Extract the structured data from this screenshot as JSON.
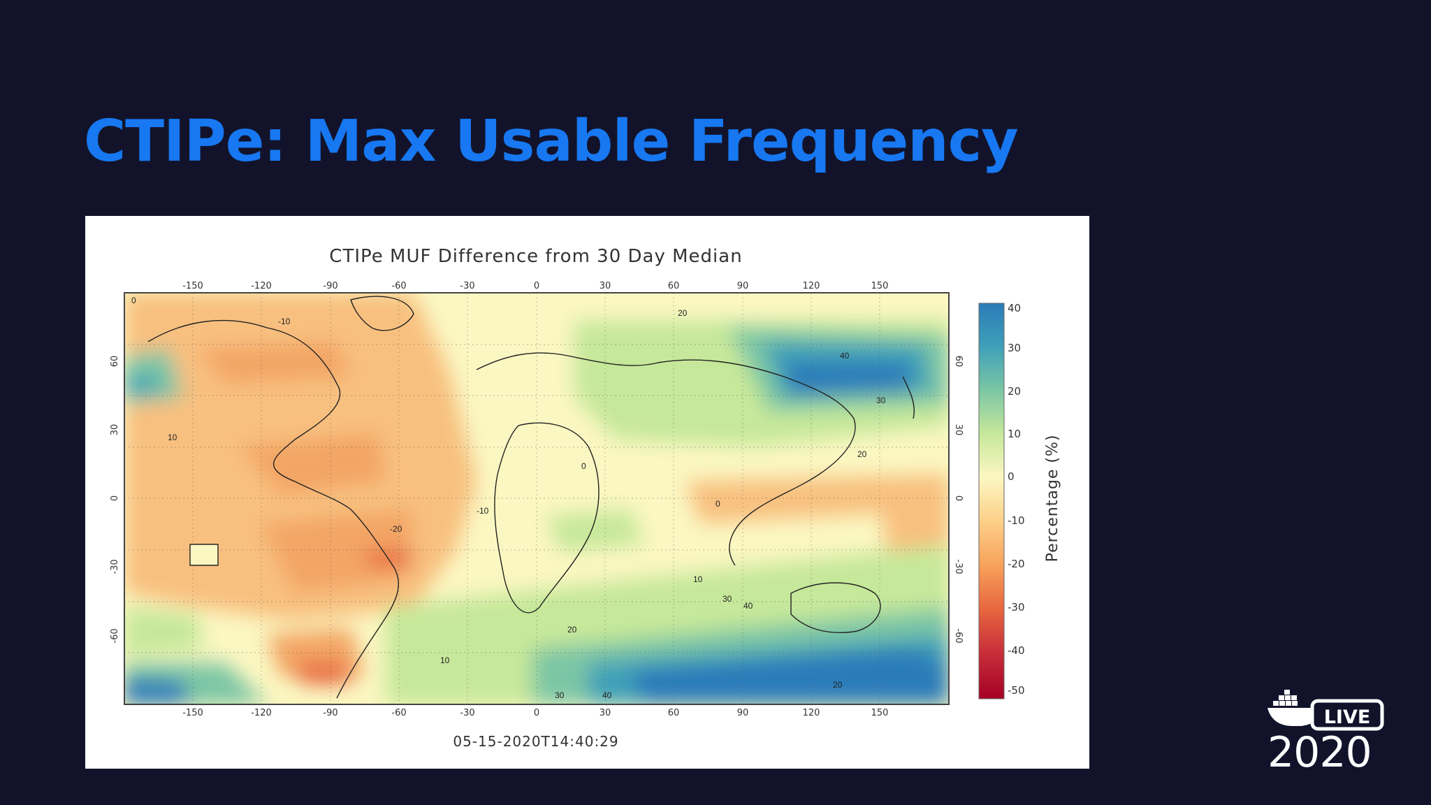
{
  "slide": {
    "title": "CTIPe: Max Usable Frequency"
  },
  "figure": {
    "title": "CTIPe MUF Difference from 30 Day Median",
    "timestamp": "05-15-2020T14:40:29",
    "colorbar": {
      "label": "Percentage (%)",
      "range": [
        -50,
        40
      ],
      "ticks": [
        "40",
        "30",
        "20",
        "10",
        "0",
        "-10",
        "-20",
        "-30",
        "-40",
        "-50"
      ],
      "colors": [
        "#2b7bb9",
        "#3fa0b8",
        "#7cc6a5",
        "#c6e89a",
        "#fbf7c2",
        "#fdd08a",
        "#f7a35c",
        "#e8683f",
        "#c9303a",
        "#a50026"
      ]
    },
    "lon_ticks": [
      "-150",
      "-120",
      "-90",
      "-60",
      "-30",
      "0",
      "30",
      "60",
      "90",
      "120",
      "150"
    ],
    "lat_ticks": [
      "60",
      "30",
      "0",
      "-30",
      "-60"
    ],
    "contour_labels": [
      "0",
      "10",
      "20",
      "30",
      "40",
      "-10",
      "-20"
    ]
  },
  "logo": {
    "word": "LIVE",
    "year": "2020"
  }
}
